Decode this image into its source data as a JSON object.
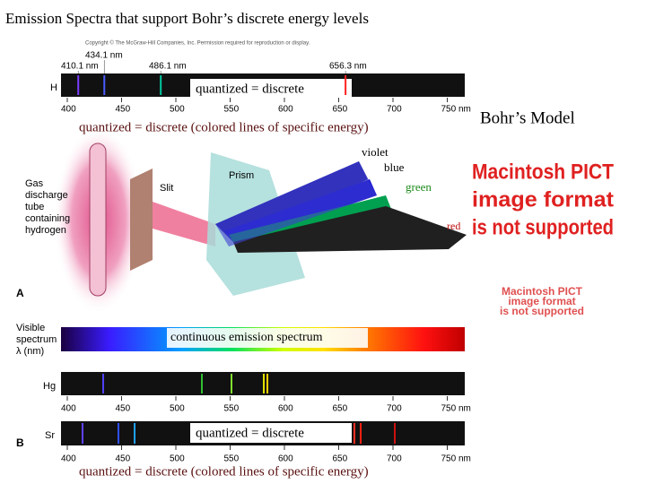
{
  "title": "Emission Spectra that support Bohr’s discrete energy levels",
  "copyright": "Copyright © The McGraw-Hill Companies, Inc. Permission required for reproduction or display.",
  "hydrogen_lines": [
    {
      "label": "410.1 nm",
      "value": 410.1,
      "color": "#7a3cff"
    },
    {
      "label": "434.1 nm",
      "value": 434.1,
      "color": "#4a5cff"
    },
    {
      "label": "486.1 nm",
      "value": 486.1,
      "color": "#00c8a0"
    },
    {
      "label": "656.3 nm",
      "value": 656.3,
      "color": "#ff2020"
    }
  ],
  "spectra": [
    {
      "label": "H",
      "ticks": [
        "400",
        "450",
        "500",
        "550",
        "600",
        "650",
        "700",
        "750 nm"
      ]
    },
    {
      "label": "Hg",
      "ticks": [
        "400",
        "450",
        "500",
        "550",
        "600",
        "650",
        "700",
        "750 nm"
      ]
    },
    {
      "label": "Sr",
      "ticks": [
        "400",
        "450",
        "500",
        "550",
        "600",
        "650",
        "700",
        "750 nm"
      ]
    }
  ],
  "annotations": {
    "quantized_top": "quantized  =   discrete",
    "quantized_top_long": "quantized  =   discrete (colored lines of specific energy)",
    "bohr_model": "Bohr’s Model",
    "violet": "violet",
    "blue": "blue",
    "green": "green",
    "red": "red",
    "continuous": "continuous emission spectrum",
    "quantized_bottom": "quantized  =   discrete",
    "quantized_bottom_long": "quantized  =   discrete (colored lines of specific energy)"
  },
  "apparatus": {
    "tube_label": [
      "Gas",
      "discharge",
      "tube",
      "containing",
      "hydrogen"
    ],
    "slit": "Slit",
    "prism": "Prism",
    "panel_a": "A",
    "visible_label": [
      "Visible",
      "spectrum",
      "λ (nm)"
    ],
    "panel_b": "B"
  },
  "pict_notice": {
    "large": [
      "Macintosh PICT",
      "image format",
      "is not supported"
    ],
    "small": [
      "Macintosh PICT",
      "image format",
      "is not supported"
    ]
  }
}
